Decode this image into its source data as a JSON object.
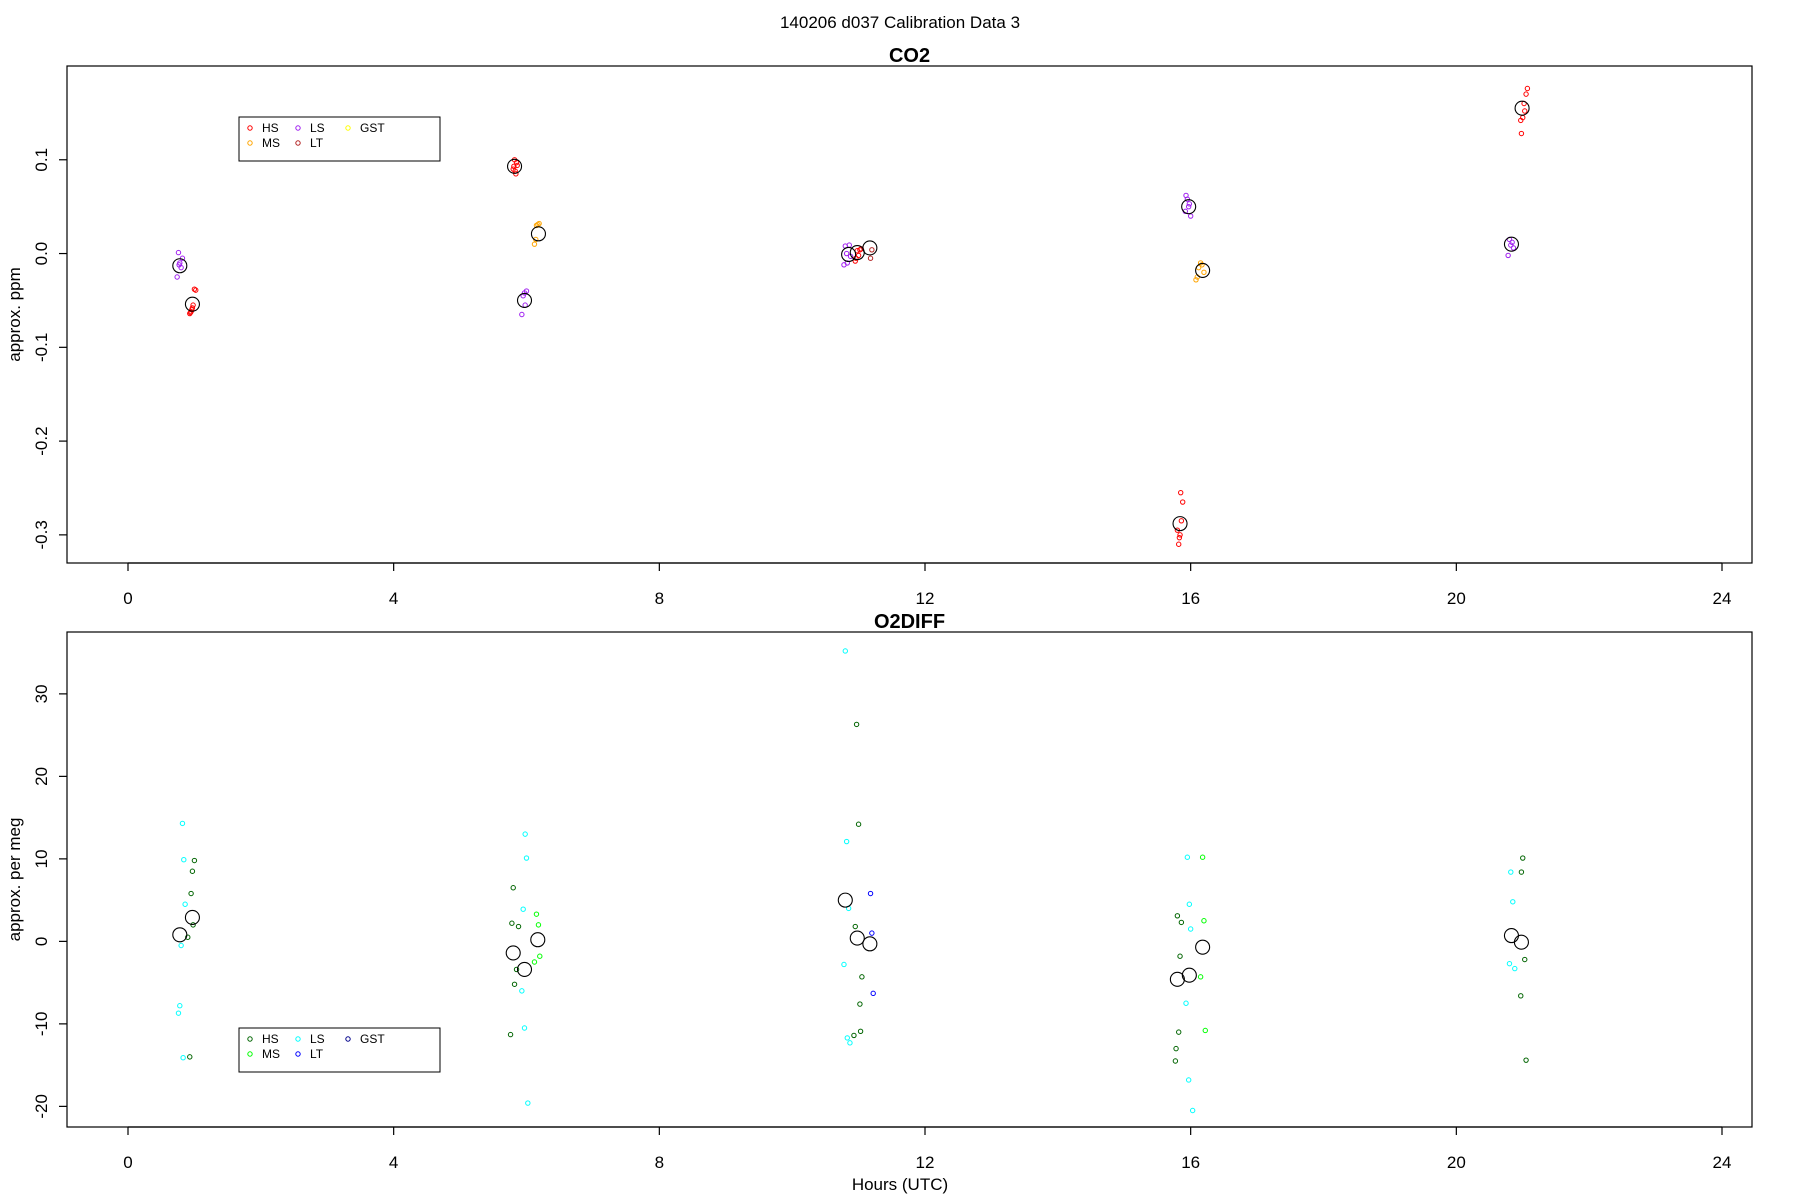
{
  "figure": {
    "title": "140206   d037   Calibration Data 3",
    "xlabel": "Hours (UTC)"
  },
  "chart_data": [
    {
      "type": "scatter",
      "title": "CO2",
      "xlabel": "",
      "ylabel": "approx. ppm",
      "xlim": [
        0,
        24
      ],
      "ylim": [
        -0.33,
        0.2
      ],
      "xticks": [
        "0",
        "4",
        "8",
        "12",
        "16",
        "20",
        "24"
      ],
      "xtick_values": [
        0,
        4,
        8,
        12,
        16,
        20,
        24
      ],
      "yticks": [
        "-0.3",
        "-0.2",
        "-0.1",
        "0.0",
        "0.1"
      ],
      "ytick_values": [
        -0.3,
        -0.2,
        -0.1,
        0.0,
        0.1
      ],
      "legend": {
        "position": "top-left",
        "entries": [
          {
            "label": "HS",
            "color": "#ff0000"
          },
          {
            "label": "MS",
            "color": "#ffa500"
          },
          {
            "label": "LS",
            "color": "#a020f0"
          },
          {
            "label": "LT",
            "color": "#b22222"
          },
          {
            "label": "GST",
            "color": "#ffff00"
          }
        ]
      },
      "series": [
        {
          "name": "HS",
          "color": "#ff0000",
          "x": [
            0.95,
            0.93,
            0.97,
            1.0,
            1.02,
            0.96,
            0.94,
            0.98,
            5.82,
            5.85,
            5.8,
            5.84,
            5.86,
            5.83,
            5.81,
            10.98,
            11.0,
            10.96,
            11.02,
            11.04,
            10.95,
            15.82,
            15.84,
            15.86,
            15.88,
            15.85,
            15.8,
            15.83,
            20.98,
            21.0,
            21.02,
            21.05,
            21.07,
            20.97,
            21.03
          ],
          "y": [
            -0.062,
            -0.064,
            -0.058,
            -0.038,
            -0.039,
            -0.06,
            -0.063,
            -0.055,
            0.1,
            0.097,
            0.09,
            0.085,
            0.094,
            0.088,
            0.093,
            0.003,
            -0.002,
            -0.005,
            0.004,
            0.005,
            -0.008,
            -0.31,
            -0.3,
            -0.285,
            -0.265,
            -0.255,
            -0.295,
            -0.303,
            0.128,
            0.145,
            0.16,
            0.17,
            0.176,
            0.142,
            0.152
          ]
        },
        {
          "name": "MS",
          "color": "#ffa500",
          "x": [
            6.15,
            6.17,
            6.19,
            6.12,
            6.14,
            16.1,
            16.12,
            16.15,
            16.17,
            16.08,
            16.2
          ],
          "y": [
            0.03,
            0.031,
            0.032,
            0.01,
            0.015,
            -0.025,
            -0.015,
            -0.01,
            -0.012,
            -0.028,
            -0.02
          ]
        },
        {
          "name": "LS",
          "color": "#a020f0",
          "x": [
            0.76,
            0.78,
            0.8,
            0.74,
            0.82,
            0.77,
            5.95,
            5.97,
            6.0,
            5.93,
            5.98,
            10.8,
            10.83,
            10.86,
            10.78,
            10.82,
            10.88,
            15.93,
            15.95,
            15.97,
            16.0,
            15.92,
            15.98,
            20.8,
            20.82,
            20.84,
            20.78,
            20.86
          ],
          "y": [
            0.001,
            -0.01,
            -0.015,
            -0.025,
            -0.005,
            -0.012,
            -0.045,
            -0.042,
            -0.04,
            -0.065,
            -0.055,
            0.008,
            -0.01,
            0.009,
            -0.012,
            0.0,
            -0.003,
            0.062,
            0.058,
            0.05,
            0.04,
            0.045,
            0.053,
            0.015,
            0.009,
            0.012,
            -0.002,
            0.006
          ]
        },
        {
          "name": "GST",
          "color": "#ffff00",
          "x": [],
          "y": []
        },
        {
          "name": "LT",
          "color": "#b22222",
          "x": [
            11.18,
            11.2
          ],
          "y": [
            -0.005,
            0.004
          ]
        },
        {
          "name": "mean",
          "color": "#000000",
          "x": [
            0.78,
            0.97,
            5.82,
            5.97,
            6.18,
            10.85,
            10.98,
            11.17,
            15.84,
            15.97,
            16.18,
            20.83,
            20.99
          ],
          "y": [
            -0.013,
            -0.054,
            0.093,
            -0.05,
            0.021,
            -0.001,
            0.001,
            0.006,
            -0.288,
            0.05,
            -0.018,
            0.01,
            0.155
          ]
        }
      ]
    },
    {
      "type": "scatter",
      "title": "O2DIFF",
      "xlabel": "Hours (UTC)",
      "ylabel": "approx. per meg",
      "xlim": [
        0,
        24
      ],
      "ylim": [
        -22.5,
        37.5
      ],
      "xticks": [
        "0",
        "4",
        "8",
        "12",
        "16",
        "20",
        "24"
      ],
      "xtick_values": [
        0,
        4,
        8,
        12,
        16,
        20,
        24
      ],
      "yticks": [
        "-20",
        "-10",
        "0",
        "10",
        "20",
        "30"
      ],
      "ytick_values": [
        -20,
        -10,
        0,
        10,
        20,
        30
      ],
      "legend": {
        "position": "bottom-left",
        "entries": [
          {
            "label": "HS",
            "color": "#006400"
          },
          {
            "label": "MS",
            "color": "#00ff00"
          },
          {
            "label": "LS",
            "color": "#00ffff"
          },
          {
            "label": "LT",
            "color": "#0000ff"
          },
          {
            "label": "GST",
            "color": "#00008b"
          }
        ]
      },
      "series": [
        {
          "name": "HS",
          "color": "#006400",
          "x": [
            1.0,
            0.97,
            0.95,
            0.98,
            0.93,
            0.9,
            5.78,
            5.82,
            5.85,
            5.76,
            5.8,
            5.88,
            10.97,
            11.0,
            10.95,
            11.05,
            10.93,
            11.02,
            11.03,
            15.8,
            15.84,
            15.82,
            15.78,
            15.86,
            15.77,
            20.98,
            21.0,
            21.03,
            20.97,
            21.05
          ],
          "y": [
            9.8,
            8.5,
            5.8,
            2.0,
            -14.0,
            0.5,
            2.2,
            -5.2,
            -3.4,
            -11.3,
            6.5,
            1.8,
            26.3,
            14.2,
            1.8,
            -4.3,
            -11.4,
            -7.6,
            -10.9,
            3.1,
            -1.8,
            -11.0,
            -13.0,
            2.3,
            -14.5,
            8.4,
            10.1,
            -2.2,
            -6.6,
            -14.4
          ]
        },
        {
          "name": "MS",
          "color": "#00ff00",
          "x": [
            6.15,
            6.18,
            6.12,
            6.2,
            16.18,
            16.2,
            16.15,
            16.22
          ],
          "y": [
            3.3,
            2.0,
            -2.5,
            -1.8,
            10.2,
            2.5,
            -4.3,
            -10.8
          ]
        },
        {
          "name": "LS",
          "color": "#00ffff",
          "x": [
            0.82,
            0.84,
            0.86,
            0.8,
            0.78,
            0.76,
            0.83,
            5.98,
            6.0,
            5.95,
            5.93,
            5.97,
            6.02,
            10.8,
            10.82,
            10.85,
            10.78,
            10.83,
            10.87,
            15.95,
            15.98,
            16.0,
            15.93,
            15.97,
            16.03,
            20.82,
            20.85,
            20.8,
            20.88
          ],
          "y": [
            14.3,
            9.9,
            4.5,
            -0.5,
            -7.8,
            -8.7,
            -14.1,
            13.0,
            10.1,
            3.9,
            -6.0,
            -10.5,
            -19.6,
            35.2,
            12.1,
            4.0,
            -2.8,
            -11.7,
            -12.3,
            10.2,
            4.5,
            1.5,
            -7.5,
            -16.8,
            -20.5,
            8.4,
            4.8,
            -2.7,
            -3.3
          ]
        },
        {
          "name": "LT",
          "color": "#0000ff",
          "x": [
            11.18,
            11.2,
            11.22
          ],
          "y": [
            5.8,
            1.0,
            -6.3
          ]
        },
        {
          "name": "GST",
          "color": "#00008b",
          "x": [],
          "y": []
        },
        {
          "name": "mean",
          "color": "#000000",
          "x": [
            0.78,
            0.97,
            5.8,
            5.97,
            6.17,
            10.8,
            10.98,
            11.17,
            15.8,
            15.98,
            16.18,
            20.83,
            20.98
          ],
          "y": [
            0.8,
            2.9,
            -1.4,
            -3.4,
            0.2,
            5.0,
            0.4,
            -0.3,
            -4.6,
            -4.1,
            -0.7,
            0.7,
            -0.1
          ]
        }
      ]
    }
  ]
}
